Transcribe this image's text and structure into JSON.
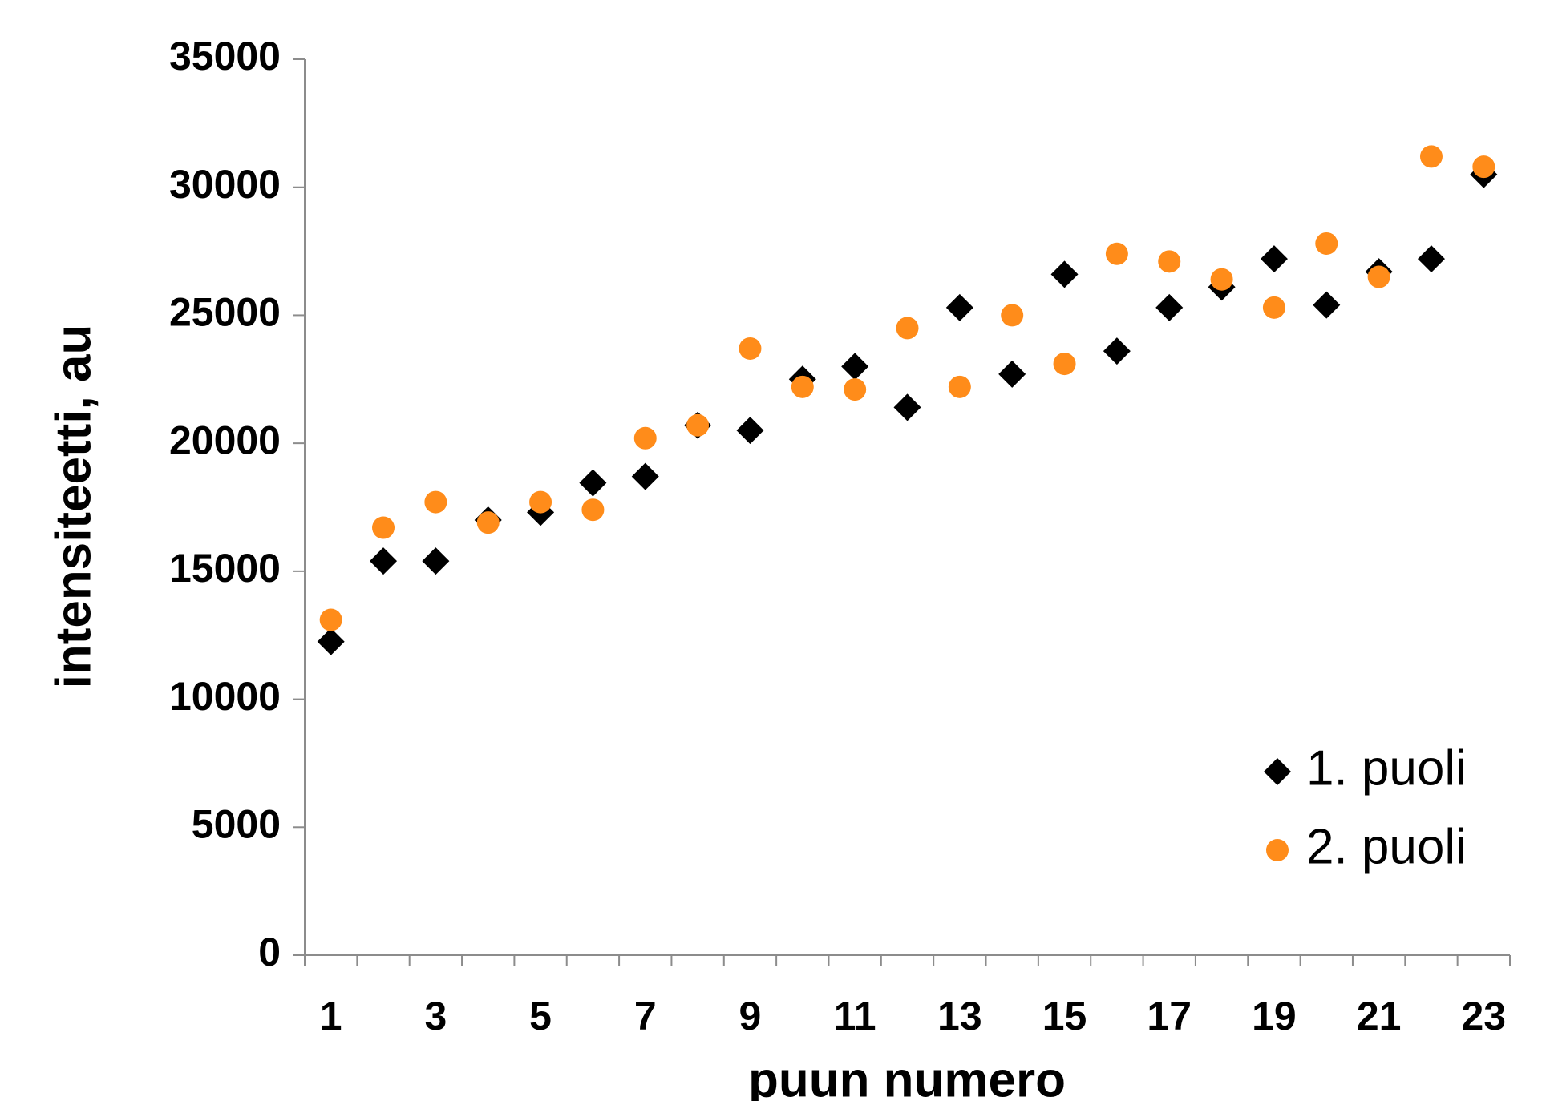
{
  "chart_data": {
    "type": "scatter",
    "x_label": "puun numero",
    "y_label": "intensiteetti, au",
    "categories": [
      "1",
      null,
      "3",
      null,
      "5",
      null,
      "7",
      null,
      "9",
      null,
      "11",
      null,
      "13",
      null,
      "15",
      null,
      "17",
      null,
      "19",
      null,
      "21",
      null,
      "23"
    ],
    "series": [
      {
        "name": "1. puoli",
        "color": "#000000",
        "marker": "diamond",
        "values": [
          12250,
          15400,
          15400,
          17000,
          17300,
          18450,
          18700,
          20700,
          20500,
          22500,
          23000,
          21400,
          25300,
          22700,
          26600,
          23600,
          25300,
          26100,
          27200,
          25400,
          26700,
          27200,
          30500
        ]
      },
      {
        "name": "2. puoli",
        "color": "#ff8c1a",
        "marker": "circle",
        "values": [
          13100,
          16700,
          17700,
          16900,
          17700,
          17400,
          20200,
          20700,
          23700,
          22200,
          22100,
          24500,
          22200,
          25000,
          23100,
          27400,
          27100,
          26400,
          25300,
          27800,
          26500,
          31200,
          30800
        ]
      }
    ],
    "ylim": [
      0,
      35000
    ],
    "yticks": [
      0,
      5000,
      10000,
      15000,
      20000,
      25000,
      30000,
      35000
    ],
    "grid": false,
    "legend": "lower right"
  }
}
